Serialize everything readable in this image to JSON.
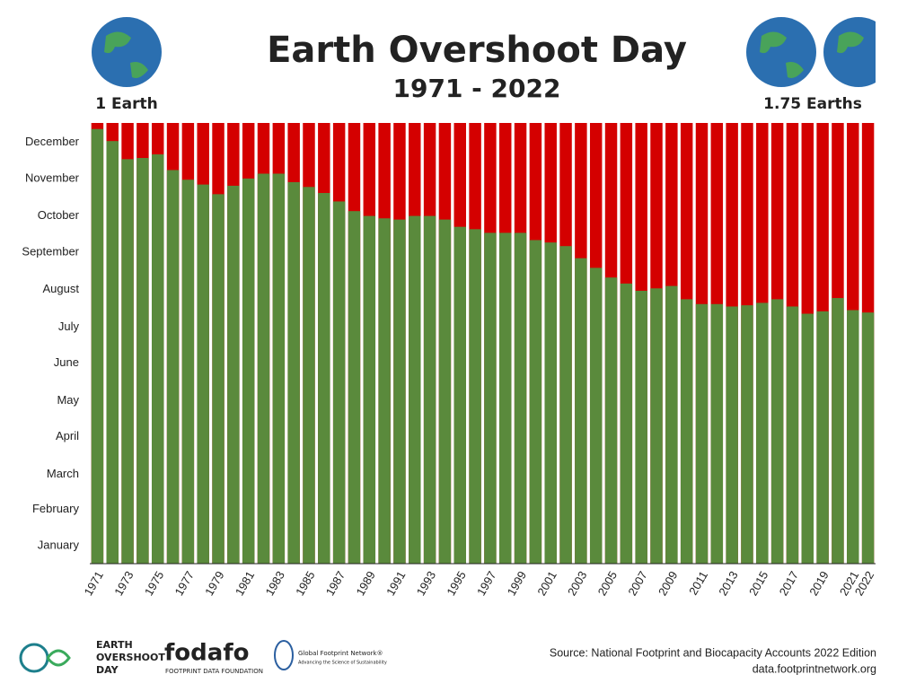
{
  "chart_data": {
    "type": "bar",
    "title": "Earth Overshoot Day",
    "subtitle": "1971 - 2022",
    "annotations": [
      "1 Earth",
      "1.75 Earths"
    ],
    "categories": [
      "1971",
      null,
      "1973",
      null,
      "1975",
      null,
      "1977",
      null,
      "1979",
      null,
      "1981",
      null,
      "1983",
      null,
      "1985",
      null,
      "1987",
      null,
      "1989",
      null,
      "1991",
      null,
      "1993",
      null,
      "1995",
      null,
      "1997",
      null,
      "1999",
      null,
      "2001",
      null,
      "2003",
      null,
      "2005",
      null,
      "2007",
      null,
      "2009",
      null,
      "2011",
      null,
      "2013",
      null,
      "2015",
      null,
      "2017",
      null,
      "2019",
      null,
      "2021",
      "2022"
    ],
    "values": [
      360,
      350,
      335,
      336,
      339,
      326,
      318,
      314,
      306,
      313,
      319,
      323,
      323,
      316,
      312,
      307,
      300,
      292,
      288,
      286,
      285,
      288,
      288,
      285,
      279,
      277,
      274,
      274,
      274,
      268,
      266,
      263,
      253,
      245,
      237,
      232,
      226,
      228,
      230,
      219,
      215,
      215,
      213,
      214,
      216,
      219,
      213,
      207,
      209,
      220,
      210,
      208
    ],
    "color": "#5a8a3c",
    "background_color": "#d40000",
    "ylim": [
      0,
      365
    ],
    "yticks": [
      {
        "value": 15,
        "label": "January"
      },
      {
        "value": 45,
        "label": "February"
      },
      {
        "value": 74,
        "label": "March"
      },
      {
        "value": 105,
        "label": "April"
      },
      {
        "value": 135,
        "label": "May"
      },
      {
        "value": 166,
        "label": "June"
      },
      {
        "value": 196,
        "label": "July"
      },
      {
        "value": 227,
        "label": "August"
      },
      {
        "value": 258,
        "label": "September"
      },
      {
        "value": 288,
        "label": "October"
      },
      {
        "value": 319,
        "label": "November"
      },
      {
        "value": 349,
        "label": "December"
      }
    ],
    "grid": false
  },
  "footer": {
    "source": "Source: National Footprint and Biocapacity Accounts 2022 Edition",
    "url": "data.footprintnetwork.org",
    "logos": [
      "EARTH",
      "OVERSHOOT",
      "DAY",
      "fodafo",
      "FOOTPRINT DATA FOUNDATION",
      "Global Footprint Network®",
      "Advancing the Science of Sustainability"
    ]
  }
}
